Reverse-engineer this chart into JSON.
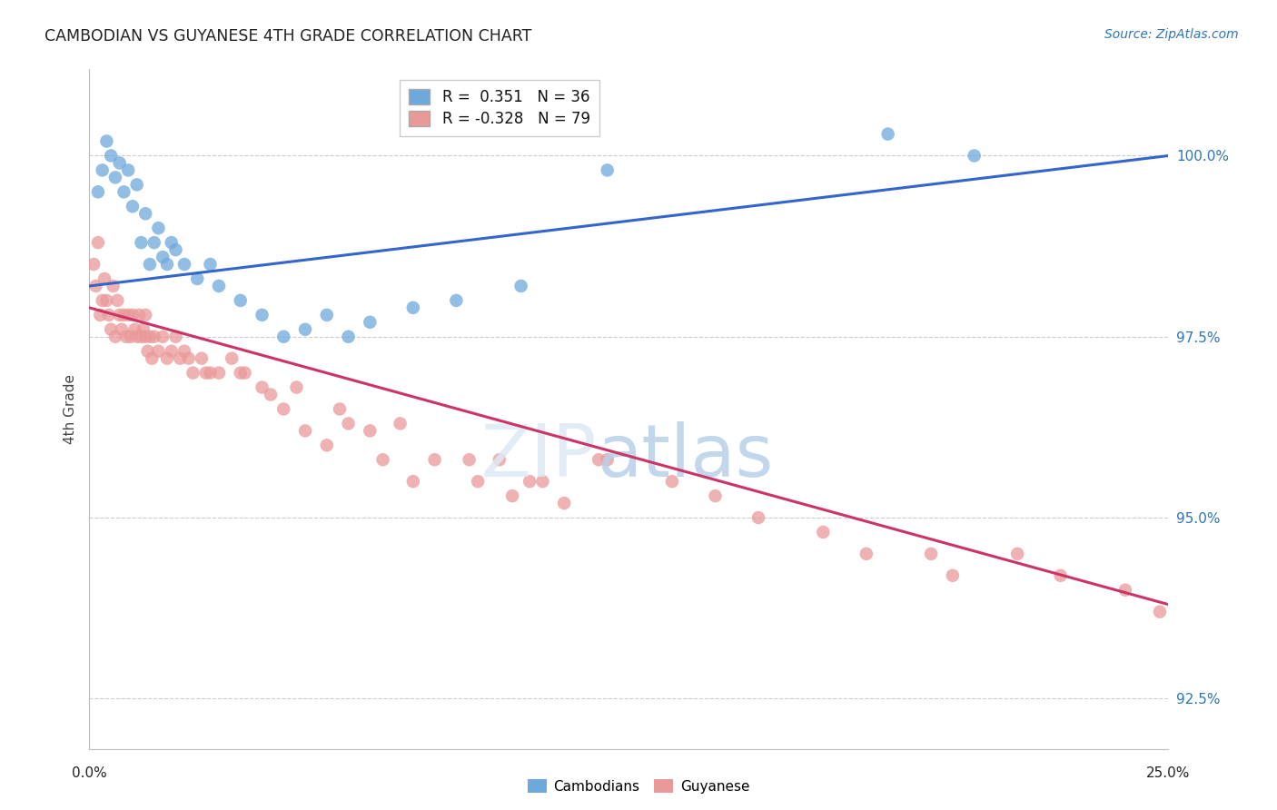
{
  "title": "CAMBODIAN VS GUYANESE 4TH GRADE CORRELATION CHART",
  "source": "Source: ZipAtlas.com",
  "ylabel": "4th Grade",
  "xlim": [
    0.0,
    25.0
  ],
  "ylim": [
    91.8,
    101.2
  ],
  "yticks": [
    92.5,
    95.0,
    97.5,
    100.0
  ],
  "ytick_labels": [
    "92.5%",
    "95.0%",
    "97.5%",
    "100.0%"
  ],
  "cambodian_R": 0.351,
  "cambodian_N": 36,
  "guyanese_R": -0.328,
  "guyanese_N": 79,
  "legend_label_cambodian": "Cambodians",
  "legend_label_guyanese": "Guyanese",
  "blue_color": "#6fa8dc",
  "pink_color": "#ea9999",
  "blue_line_color": "#3366cc",
  "pink_line_color": "#cc3366",
  "cam_x": [
    0.2,
    0.3,
    0.4,
    0.5,
    0.6,
    0.7,
    0.8,
    0.9,
    1.0,
    1.1,
    1.2,
    1.3,
    1.4,
    1.5,
    1.6,
    1.7,
    1.8,
    1.9,
    2.0,
    2.2,
    2.5,
    2.8,
    3.0,
    3.5,
    4.0,
    4.5,
    5.0,
    5.5,
    6.0,
    6.5,
    7.5,
    8.5,
    10.0,
    12.0,
    18.5,
    20.5
  ],
  "cam_y": [
    99.5,
    99.8,
    100.2,
    100.0,
    99.7,
    99.9,
    99.5,
    99.8,
    99.3,
    99.6,
    98.8,
    99.2,
    98.5,
    98.8,
    99.0,
    98.6,
    98.5,
    98.8,
    98.7,
    98.5,
    98.3,
    98.5,
    98.2,
    98.0,
    97.8,
    97.5,
    97.6,
    97.8,
    97.5,
    97.7,
    97.9,
    98.0,
    98.2,
    99.8,
    100.3,
    100.0
  ],
  "guy_x": [
    0.1,
    0.15,
    0.2,
    0.25,
    0.3,
    0.35,
    0.4,
    0.45,
    0.5,
    0.55,
    0.6,
    0.65,
    0.7,
    0.75,
    0.8,
    0.85,
    0.9,
    0.95,
    1.0,
    1.05,
    1.1,
    1.15,
    1.2,
    1.25,
    1.3,
    1.35,
    1.4,
    1.45,
    1.5,
    1.6,
    1.7,
    1.8,
    1.9,
    2.0,
    2.1,
    2.2,
    2.4,
    2.6,
    2.8,
    3.0,
    3.3,
    3.6,
    4.0,
    4.5,
    5.0,
    5.5,
    6.0,
    6.8,
    7.5,
    8.0,
    9.0,
    9.8,
    10.5,
    11.0,
    12.0,
    13.5,
    14.5,
    15.5,
    17.0,
    18.0,
    19.5,
    20.0,
    21.5,
    22.5,
    24.0,
    24.8,
    3.5,
    4.8,
    2.3,
    5.8,
    7.2,
    8.8,
    10.2,
    11.8,
    6.5,
    9.5,
    1.3,
    2.7,
    4.2
  ],
  "guy_y": [
    98.5,
    98.2,
    98.8,
    97.8,
    98.0,
    98.3,
    98.0,
    97.8,
    97.6,
    98.2,
    97.5,
    98.0,
    97.8,
    97.6,
    97.8,
    97.5,
    97.8,
    97.5,
    97.8,
    97.6,
    97.5,
    97.8,
    97.5,
    97.6,
    97.8,
    97.3,
    97.5,
    97.2,
    97.5,
    97.3,
    97.5,
    97.2,
    97.3,
    97.5,
    97.2,
    97.3,
    97.0,
    97.2,
    97.0,
    97.0,
    97.2,
    97.0,
    96.8,
    96.5,
    96.2,
    96.0,
    96.3,
    95.8,
    95.5,
    95.8,
    95.5,
    95.3,
    95.5,
    95.2,
    95.8,
    95.5,
    95.3,
    95.0,
    94.8,
    94.5,
    94.5,
    94.2,
    94.5,
    94.2,
    94.0,
    93.7,
    97.0,
    96.8,
    97.2,
    96.5,
    96.3,
    95.8,
    95.5,
    95.8,
    96.2,
    95.8,
    97.5,
    97.0,
    96.7
  ],
  "cam_line_x": [
    0.0,
    25.0
  ],
  "cam_line_y": [
    98.2,
    100.0
  ],
  "guy_line_x": [
    0.0,
    25.0
  ],
  "guy_line_y": [
    97.9,
    93.8
  ]
}
